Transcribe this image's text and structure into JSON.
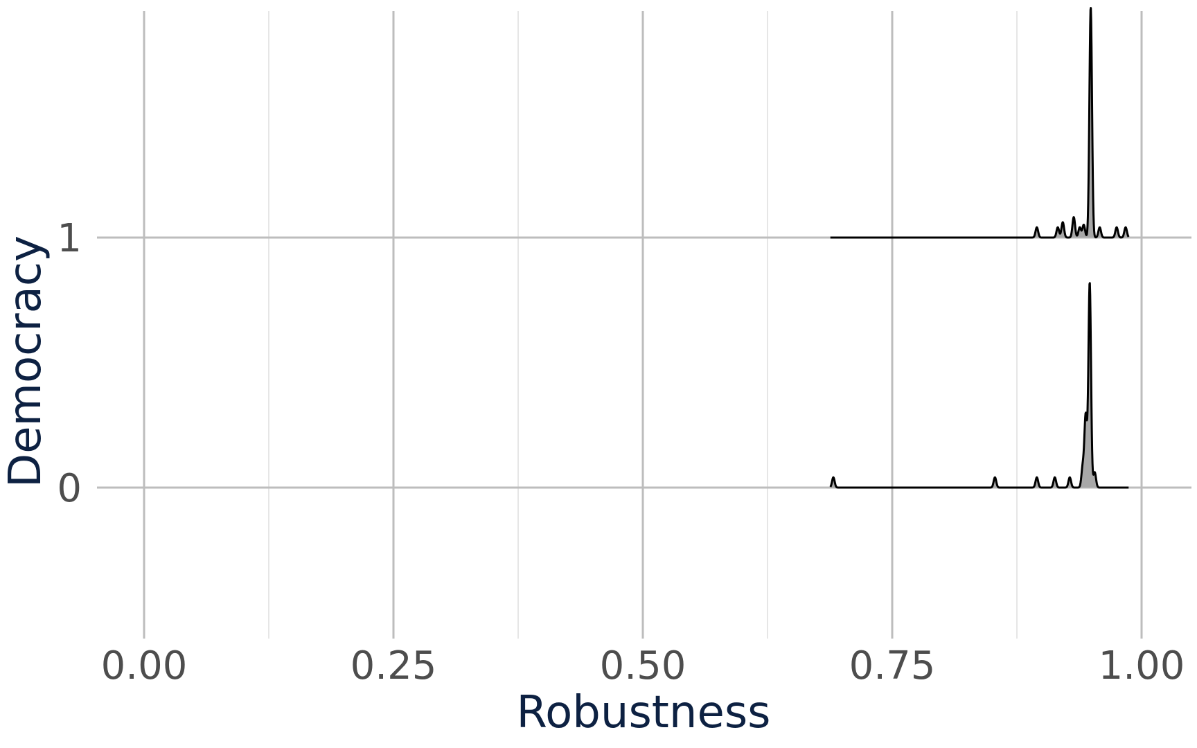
{
  "chart_data": {
    "type": "ridgeline",
    "title": "",
    "xlabel": "Robustness",
    "ylabel": "Democracy",
    "xlim": [
      -0.1,
      1.05
    ],
    "x_ticks": [
      "0.00",
      "0.25",
      "0.50",
      "0.75",
      "1.00"
    ],
    "x_tick_values": [
      0.0,
      0.25,
      0.5,
      0.75,
      1.0
    ],
    "y_categories": [
      "0",
      "1"
    ],
    "grid": true,
    "fill_color": "#a8a8a8",
    "line_color": "#000000",
    "series": [
      {
        "category": "0",
        "x_range": [
          0.688,
          0.987
        ],
        "peaks": [
          {
            "x": 0.691,
            "density": 0.04
          },
          {
            "x": 0.853,
            "density": 0.04
          },
          {
            "x": 0.895,
            "density": 0.04
          },
          {
            "x": 0.913,
            "density": 0.04
          },
          {
            "x": 0.928,
            "density": 0.04
          },
          {
            "x": 0.941,
            "density": 0.08
          },
          {
            "x": 0.944,
            "density": 0.28
          },
          {
            "x": 0.948,
            "density": 0.8
          },
          {
            "x": 0.953,
            "density": 0.06
          }
        ]
      },
      {
        "category": "1",
        "x_range": [
          0.688,
          0.987
        ],
        "peaks": [
          {
            "x": 0.895,
            "density": 0.04
          },
          {
            "x": 0.916,
            "density": 0.04
          },
          {
            "x": 0.921,
            "density": 0.06
          },
          {
            "x": 0.932,
            "density": 0.08
          },
          {
            "x": 0.938,
            "density": 0.04
          },
          {
            "x": 0.942,
            "density": 0.05
          },
          {
            "x": 0.949,
            "density": 0.9
          },
          {
            "x": 0.958,
            "density": 0.04
          },
          {
            "x": 0.975,
            "density": 0.04
          },
          {
            "x": 0.984,
            "density": 0.04
          }
        ]
      }
    ]
  }
}
